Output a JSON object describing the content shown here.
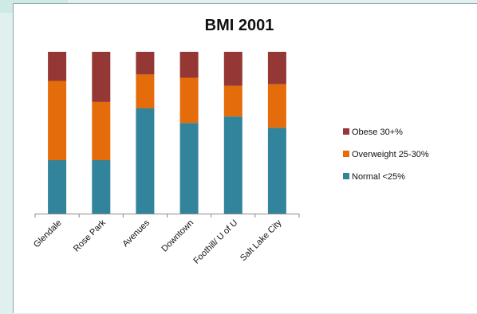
{
  "chart_data": {
    "type": "bar",
    "stacked": true,
    "title": "BMI 2001",
    "categories": [
      "Glendale",
      "Rose Park",
      "Avenues",
      "Downtown",
      "Foothill/ U of U",
      "Salt Lake City"
    ],
    "series": [
      {
        "name": "Normal <25%",
        "color": "#31849b",
        "values": [
          33,
          33,
          65,
          56,
          60,
          53
        ]
      },
      {
        "name": "Overweight 25-30%",
        "color": "#e46c0a",
        "values": [
          49,
          36,
          21,
          28,
          19,
          27
        ]
      },
      {
        "name": "Obese 30+%",
        "color": "#953735",
        "values": [
          18,
          31,
          14,
          16,
          21,
          20
        ]
      }
    ],
    "ylim": [
      0,
      100
    ],
    "grid": false,
    "legend": "right",
    "legend_order": [
      "Obese 30+%",
      "Overweight 25-30%",
      "Normal <25%"
    ]
  }
}
